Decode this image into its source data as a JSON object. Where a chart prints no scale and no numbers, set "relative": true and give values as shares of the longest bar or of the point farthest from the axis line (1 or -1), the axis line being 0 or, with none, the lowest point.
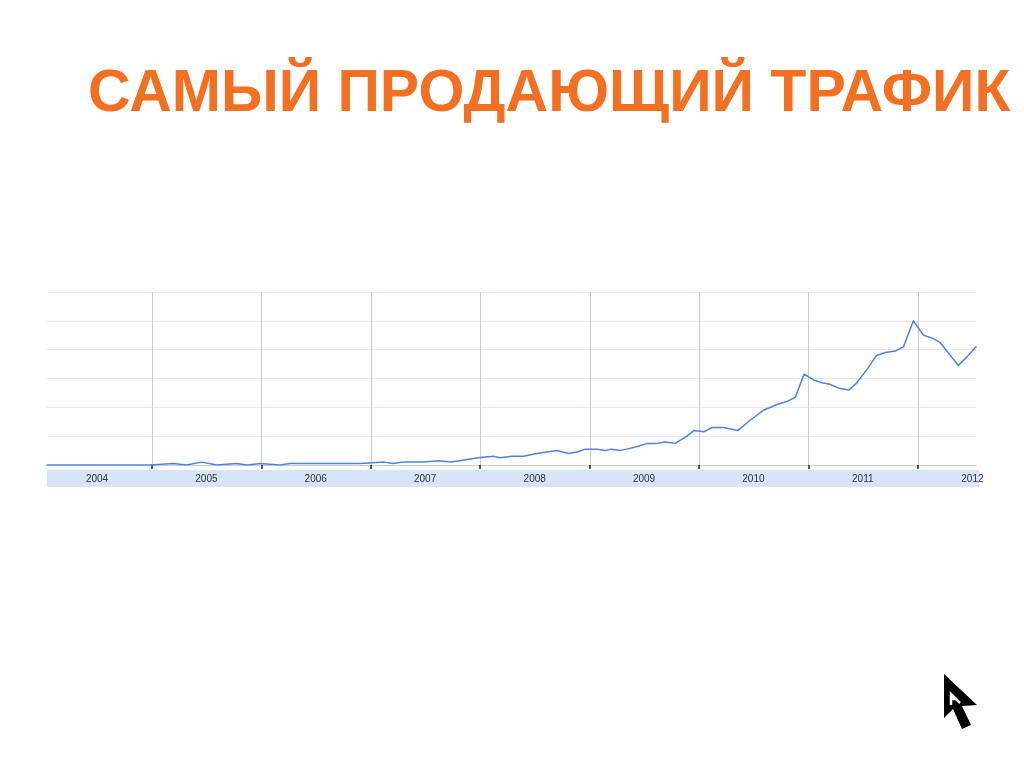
{
  "chart_data": {
    "type": "line",
    "title": "САМЫЙ ПРОДАЮЩИЙ ТРАФИК",
    "relative": true,
    "grid": true,
    "marker": "none",
    "xlim": [
      "2004-01-16",
      "2012-07-13"
    ],
    "xticks": [
      {
        "value": "2004-07",
        "label": "2004"
      },
      {
        "value": "2005",
        "label": null
      },
      {
        "value": "2005-07",
        "label": "2005"
      },
      {
        "value": "2006",
        "label": null
      },
      {
        "value": "2006-07",
        "label": "2006"
      },
      {
        "value": "2007",
        "label": null
      },
      {
        "value": "2007-07",
        "label": "2007"
      },
      {
        "value": "2008",
        "label": null
      },
      {
        "value": "2008-07",
        "label": "2008"
      },
      {
        "value": "2009",
        "label": null
      },
      {
        "value": "2009-07",
        "label": "2009"
      },
      {
        "value": "2010",
        "label": null
      },
      {
        "value": "2010-07",
        "label": "2010"
      },
      {
        "value": "2011",
        "label": null
      },
      {
        "value": "2011-07",
        "label": "2011"
      },
      {
        "value": "2012",
        "label": null
      },
      {
        "value": "2012-07",
        "label": "2012"
      }
    ],
    "x": [
      "2004-01-16",
      "2004-12-25",
      "2005-03-12",
      "2005-04-26",
      "2005-06-15",
      "2005-08-05",
      "2005-10-10",
      "2005-11-13",
      "2005-12-27",
      "2006-03-03",
      "2006-04-06",
      "2006-11-26",
      "2007-02-15",
      "2007-03-16",
      "2007-04-19",
      "2007-06-25",
      "2007-08-14",
      "2007-09-22",
      "2007-10-25",
      "2007-12-25",
      "2008-02-15",
      "2008-03-07",
      "2008-04-15",
      "2008-05-24",
      "2008-07-08",
      "2008-09-13",
      "2008-10-22",
      "2008-11-19",
      "2008-12-17",
      "2009-01-25",
      "2009-02-22",
      "2009-03-15",
      "2009-04-12",
      "2009-05-04",
      "2009-06-12",
      "2009-07-12",
      "2009-08-13",
      "2009-09-10",
      "2009-10-13",
      "2009-11-21",
      "2009-12-15",
      "2010-01-16",
      "2010-02-14",
      "2010-03-22",
      "2010-05-11",
      "2010-06-14",
      "2010-08-04",
      "2010-09-18",
      "2010-10-20",
      "2010-11-18",
      "2010-12-17",
      "2011-01-18",
      "2011-02-15",
      "2011-03-13",
      "2011-04-16",
      "2011-05-16",
      "2011-06-11",
      "2011-07-14",
      "2011-08-16",
      "2011-09-14",
      "2011-10-17",
      "2011-11-14",
      "2011-12-17",
      "2012-01-20",
      "2012-02-18",
      "2012-03-15",
      "2012-05-15",
      "2012-06-13",
      "2012-07-13"
    ],
    "series": [
      {
        "color": "#4f81e0",
        "values": [
          0,
          0,
          0.01,
          0,
          0.02,
          0,
          0.01,
          0,
          0.01,
          0,
          0.01,
          0.01,
          0.02,
          0.01,
          0.02,
          0.02,
          0.03,
          0.02,
          0.03,
          0.05,
          0.06,
          0.05,
          0.06,
          0.06,
          0.08,
          0.1,
          0.08,
          0.09,
          0.11,
          0.11,
          0.1,
          0.11,
          0.1,
          0.11,
          0.13,
          0.15,
          0.15,
          0.16,
          0.15,
          0.2,
          0.24,
          0.23,
          0.26,
          0.26,
          0.24,
          0.3,
          0.38,
          0.42,
          0.44,
          0.47,
          0.63,
          0.59,
          0.57,
          0.56,
          0.53,
          0.52,
          0.57,
          0.66,
          0.76,
          0.78,
          0.79,
          0.82,
          1,
          0.9,
          0.88,
          0.85,
          0.69,
          0.75,
          0.82
        ]
      }
    ]
  }
}
